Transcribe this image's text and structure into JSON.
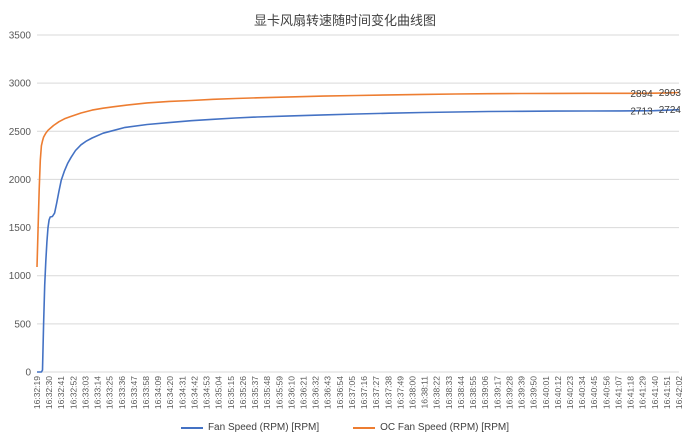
{
  "chart_data": {
    "type": "line",
    "title": "显卡风扇转速随时间变化曲线图",
    "xlabel": "",
    "ylabel": "",
    "ylim": [
      0,
      3500
    ],
    "y_ticks": [
      0,
      500,
      1000,
      1500,
      2000,
      2500,
      3000,
      3500
    ],
    "grid": true,
    "legend_position": "bottom",
    "x_tick_labels": [
      "16:32:19",
      "16:32:30",
      "16:32:41",
      "16:32:52",
      "16:33:03",
      "16:33:14",
      "16:33:25",
      "16:33:36",
      "16:33:47",
      "16:33:58",
      "16:34:09",
      "16:34:20",
      "16:34:31",
      "16:34:42",
      "16:34:53",
      "16:35:04",
      "16:35:15",
      "16:35:26",
      "16:35:37",
      "16:35:48",
      "16:35:59",
      "16:36:10",
      "16:36:21",
      "16:36:32",
      "16:36:43",
      "16:36:54",
      "16:37:05",
      "16:37:16",
      "16:37:27",
      "16:37:38",
      "16:37:49",
      "16:38:00",
      "16:38:11",
      "16:38:22",
      "16:38:33",
      "16:38:44",
      "16:38:55",
      "16:39:06",
      "16:39:17",
      "16:39:28",
      "16:39:39",
      "16:39:50",
      "16:40:01",
      "16:40:12",
      "16:40:23",
      "16:40:34",
      "16:40:45",
      "16:40:56",
      "16:41:07",
      "16:41:18",
      "16:41:29",
      "16:41:40",
      "16:41:51",
      "16:42:02"
    ],
    "x_seconds": [
      0,
      5,
      8,
      11,
      15,
      20,
      25,
      30,
      40,
      50,
      60,
      80,
      100,
      120,
      140,
      160,
      180,
      200,
      230,
      260,
      290,
      320,
      350,
      380,
      410,
      440,
      470,
      500,
      530,
      560,
      590,
      583
    ],
    "series": [
      {
        "name": "Fan Speed (RPM) [RPM]",
        "color": "#4472C4",
        "x": [
          0,
          4,
          5,
          6,
          7,
          8,
          9,
          10,
          11,
          12,
          14,
          16,
          18,
          20,
          22,
          25,
          28,
          31,
          35,
          40,
          45,
          50,
          60,
          70,
          80,
          100,
          120,
          140,
          160,
          180,
          200,
          230,
          260,
          290,
          320,
          350,
          380,
          410,
          440,
          470,
          500,
          530,
          549,
          560,
          572,
          583
        ],
        "y": [
          0,
          0,
          20,
          500,
          900,
          1150,
          1350,
          1500,
          1580,
          1610,
          1615,
          1650,
          1760,
          1880,
          1990,
          2090,
          2170,
          2230,
          2300,
          2360,
          2400,
          2430,
          2480,
          2510,
          2540,
          2570,
          2590,
          2610,
          2625,
          2638,
          2648,
          2660,
          2670,
          2680,
          2688,
          2695,
          2700,
          2705,
          2708,
          2710,
          2711,
          2712,
          2713,
          2714,
          2719,
          2724
        ]
      },
      {
        "name": "OC  Fan Speed (RPM) [RPM]",
        "color": "#ED7D31",
        "x": [
          0,
          1,
          2,
          3,
          4,
          5,
          6,
          7,
          8,
          10,
          12,
          15,
          20,
          25,
          30,
          40,
          50,
          60,
          70,
          80,
          100,
          120,
          140,
          160,
          180,
          200,
          230,
          260,
          290,
          320,
          350,
          380,
          410,
          440,
          470,
          500,
          530,
          549,
          560,
          572,
          583
        ],
        "y": [
          1090,
          1500,
          1900,
          2200,
          2350,
          2400,
          2440,
          2460,
          2480,
          2510,
          2530,
          2560,
          2600,
          2630,
          2650,
          2690,
          2720,
          2740,
          2755,
          2770,
          2795,
          2810,
          2820,
          2832,
          2840,
          2848,
          2857,
          2865,
          2872,
          2878,
          2883,
          2887,
          2890,
          2892,
          2893,
          2894,
          2894,
          2894,
          2896,
          2899,
          2903
        ]
      }
    ],
    "data_labels": [
      {
        "series": 1,
        "x": 549,
        "value": "2894"
      },
      {
        "series": 1,
        "x": 583,
        "value": "2903"
      },
      {
        "series": 0,
        "x": 549,
        "value": "2713"
      },
      {
        "series": 0,
        "x": 583,
        "value": "2724"
      }
    ]
  }
}
